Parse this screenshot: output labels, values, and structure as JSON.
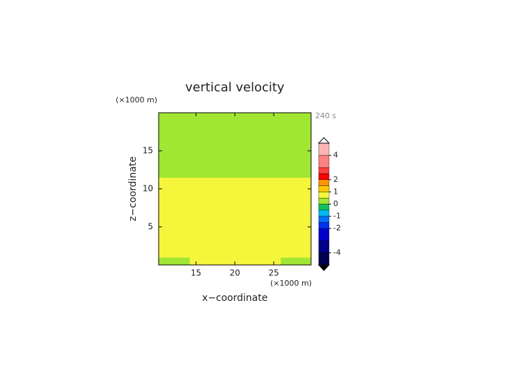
{
  "chart_data": {
    "type": "contour",
    "title": "vertical velocity",
    "x_label": "x−coordinate",
    "y_label": "z−coordinate",
    "x_unit": "(×1000 m)",
    "y_unit": "(×1000 m)",
    "time_label": "240 s",
    "xlim": [
      10.2,
      29.8
    ],
    "ylim": [
      0,
      20
    ],
    "xticks": [
      15,
      20,
      25
    ],
    "yticks": [
      5,
      10,
      15
    ],
    "x_edges": [
      10.2,
      14.2,
      25.9,
      29.8
    ],
    "z_edges": [
      0,
      1,
      11.5,
      20
    ],
    "values": [
      [
        0.3,
        0.7,
        0.3
      ],
      [
        0.7,
        0.7,
        0.7
      ],
      [
        0.3,
        0.3,
        0.3
      ]
    ],
    "colorbar": {
      "lim": [
        -5,
        5
      ],
      "levels": [
        -5,
        -4,
        -3,
        -2,
        -1.5,
        -1,
        -0.5,
        0,
        0.5,
        1,
        1.5,
        2,
        2.5,
        3,
        4,
        5
      ],
      "colors": [
        "#000050",
        "#00008b",
        "#0000cd",
        "#0030f0",
        "#0070ff",
        "#00b8f0",
        "#10c060",
        "#a0e632",
        "#f5f53c",
        "#ffc800",
        "#ff9600",
        "#ff0000",
        "#ff4040",
        "#ff8080",
        "#ffb4b4"
      ],
      "over_color": "#ffffff",
      "under_color": "#000000",
      "ticks": [
        4,
        2,
        1,
        0,
        -1,
        -2,
        -4
      ]
    }
  }
}
